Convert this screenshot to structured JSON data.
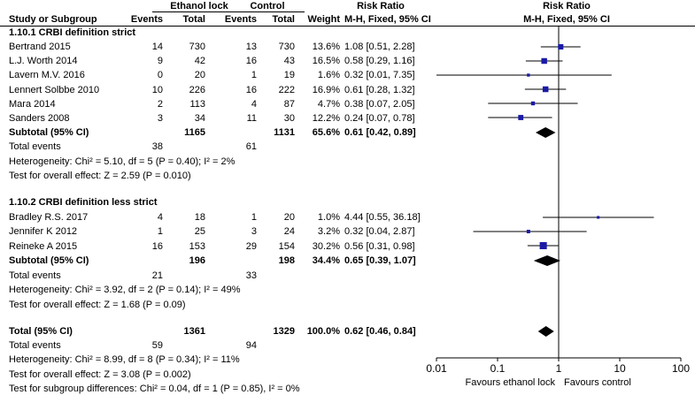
{
  "header": {
    "group1": "Ethanol lock",
    "group2": "Control",
    "effect_left": "Risk Ratio",
    "effect_right": "Risk Ratio",
    "col_study": "Study or Subgroup",
    "col_events1": "Events",
    "col_total1": "Total",
    "col_events2": "Events",
    "col_total2": "Total",
    "col_weight": "Weight",
    "col_rr_left": "M-H, Fixed, 95% CI",
    "col_rr_right": "M-H, Fixed, 95% CI"
  },
  "subgroups": [
    {
      "title": "1.10.1 CRBI definition strict",
      "studies": [
        {
          "name": "Bertrand 2015",
          "e1": "14",
          "t1": "730",
          "e2": "13",
          "t2": "730",
          "weight": "13.6%",
          "ci": "1.08 [0.51, 2.28]"
        },
        {
          "name": "L.J. Worth 2014",
          "e1": "9",
          "t1": "42",
          "e2": "16",
          "t2": "43",
          "weight": "16.5%",
          "ci": "0.58 [0.29, 1.16]"
        },
        {
          "name": "Lavern M.V. 2016",
          "e1": "0",
          "t1": "20",
          "e2": "1",
          "t2": "19",
          "weight": "1.6%",
          "ci": "0.32 [0.01, 7.35]"
        },
        {
          "name": "Lennert Solbbe 2010",
          "e1": "10",
          "t1": "226",
          "e2": "16",
          "t2": "222",
          "weight": "16.9%",
          "ci": "0.61 [0.28, 1.32]"
        },
        {
          "name": "Mara 2014",
          "e1": "2",
          "t1": "113",
          "e2": "4",
          "t2": "87",
          "weight": "4.7%",
          "ci": "0.38 [0.07, 2.05]"
        },
        {
          "name": "Sanders 2008",
          "e1": "3",
          "t1": "34",
          "e2": "11",
          "t2": "30",
          "weight": "12.2%",
          "ci": "0.24 [0.07, 0.78]"
        }
      ],
      "subtotal": {
        "label": "Subtotal (95% CI)",
        "t1": "1165",
        "t2": "1131",
        "weight": "65.6%",
        "ci": "0.61 [0.42, 0.89]"
      },
      "total_events": {
        "label": "Total events",
        "e1": "38",
        "e2": "61"
      },
      "heterogeneity": "Heterogeneity: Chi² = 5.10, df = 5 (P = 0.40); I² = 2%",
      "overall": "Test for overall effect: Z = 2.59 (P = 0.010)"
    },
    {
      "title": "1.10.2 CRBI definition less strict",
      "studies": [
        {
          "name": "Bradley R.S. 2017",
          "e1": "4",
          "t1": "18",
          "e2": "1",
          "t2": "20",
          "weight": "1.0%",
          "ci": "4.44 [0.55, 36.18]"
        },
        {
          "name": "Jennifer K 2012",
          "e1": "1",
          "t1": "25",
          "e2": "3",
          "t2": "24",
          "weight": "3.2%",
          "ci": "0.32 [0.04, 2.87]"
        },
        {
          "name": "Reineke A 2015",
          "e1": "16",
          "t1": "153",
          "e2": "29",
          "t2": "154",
          "weight": "30.2%",
          "ci": "0.56 [0.31, 0.98]"
        }
      ],
      "subtotal": {
        "label": "Subtotal (95% CI)",
        "t1": "196",
        "t2": "198",
        "weight": "34.4%",
        "ci": "0.65 [0.39, 1.07]"
      },
      "total_events": {
        "label": "Total events",
        "e1": "21",
        "e2": "33"
      },
      "heterogeneity": "Heterogeneity: Chi² = 3.92, df = 2 (P = 0.14); I² = 49%",
      "overall": "Test for overall effect: Z = 1.68 (P = 0.09)"
    }
  ],
  "total": {
    "label": "Total (95% CI)",
    "t1": "1361",
    "t2": "1329",
    "weight": "100.0%",
    "ci": "0.62 [0.46, 0.84]"
  },
  "total_events": {
    "label": "Total events",
    "e1": "59",
    "e2": "94"
  },
  "total_heterogeneity": "Heterogeneity: Chi² = 8.99, df = 8 (P = 0.34); I² = 11%",
  "total_overall": "Test for overall effect: Z = 3.08 (P = 0.002)",
  "subgroup_diff": "Test for subgroup differences: Chi² = 0.04, df = 1 (P = 0.85), I² = 0%",
  "colors": {
    "marker": "#1a1aa6",
    "diamond": "#000000",
    "line": "#000000"
  },
  "chart_data": {
    "type": "forest",
    "scale": "log",
    "xlim": [
      0.01,
      100
    ],
    "xticks": [
      {
        "v": 0.01,
        "label": "0.01"
      },
      {
        "v": 0.1,
        "label": "0.1"
      },
      {
        "v": 1,
        "label": "1"
      },
      {
        "v": 10,
        "label": "10"
      },
      {
        "v": 100,
        "label": "100"
      }
    ],
    "xlabel_left": "Favours ethanol lock",
    "xlabel_right": "Favours control",
    "studies": [
      {
        "name": "Bertrand 2015",
        "rr": 1.08,
        "lo": 0.51,
        "hi": 2.28,
        "w": 13.6
      },
      {
        "name": "L.J. Worth 2014",
        "rr": 0.58,
        "lo": 0.29,
        "hi": 1.16,
        "w": 16.5
      },
      {
        "name": "Lavern M.V. 2016",
        "rr": 0.32,
        "lo": 0.01,
        "hi": 7.35,
        "w": 1.6
      },
      {
        "name": "Lennert Solbbe 2010",
        "rr": 0.61,
        "lo": 0.28,
        "hi": 1.32,
        "w": 16.9
      },
      {
        "name": "Mara 2014",
        "rr": 0.38,
        "lo": 0.07,
        "hi": 2.05,
        "w": 4.7
      },
      {
        "name": "Sanders 2008",
        "rr": 0.24,
        "lo": 0.07,
        "hi": 0.78,
        "w": 12.2
      },
      {
        "name": "Bradley R.S. 2017",
        "rr": 4.44,
        "lo": 0.55,
        "hi": 36.18,
        "w": 1.0
      },
      {
        "name": "Jennifer K 2012",
        "rr": 0.32,
        "lo": 0.04,
        "hi": 2.87,
        "w": 3.2
      },
      {
        "name": "Reineke A 2015",
        "rr": 0.56,
        "lo": 0.31,
        "hi": 0.98,
        "w": 30.2
      }
    ],
    "summaries": [
      {
        "name": "Subtotal 1.10.1",
        "rr": 0.61,
        "lo": 0.42,
        "hi": 0.89
      },
      {
        "name": "Subtotal 1.10.2",
        "rr": 0.65,
        "lo": 0.39,
        "hi": 1.07
      },
      {
        "name": "Total",
        "rr": 0.62,
        "lo": 0.46,
        "hi": 0.84
      }
    ]
  }
}
